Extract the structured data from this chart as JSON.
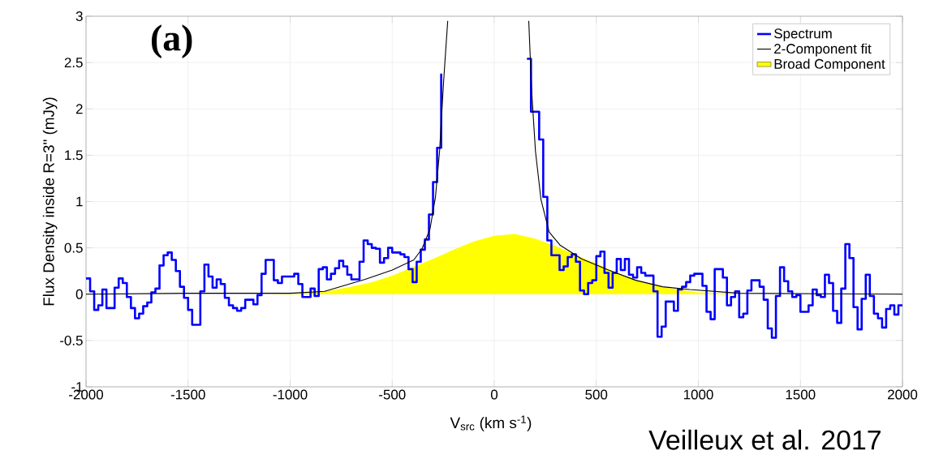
{
  "chart_data": {
    "type": "line",
    "xlabel": "V$_{src}$ (km s$^{-1}$)",
    "ylabel": "Flux Density inside R=3\" (mJy)",
    "annotations": [
      "(a)",
      "Veilleux et al. 2017"
    ],
    "xlim": [
      -2000,
      2000
    ],
    "ylim": [
      -1,
      3
    ],
    "xticks": [
      -2000,
      -1500,
      -1000,
      -500,
      0,
      500,
      1000,
      1500,
      2000
    ],
    "yticks": [
      -1,
      -0.5,
      0,
      0.5,
      1,
      1.5,
      2,
      2.5,
      3
    ],
    "grid": true,
    "legend": "top right",
    "series": [
      {
        "name": "Spectrum",
        "type": "step",
        "color": "#0000ff",
        "x": [
          -2000,
          -1980,
          -1960,
          -1940,
          -1920,
          -1900,
          -1880,
          -1860,
          -1840,
          -1820,
          -1800,
          -1780,
          -1760,
          -1740,
          -1720,
          -1700,
          -1680,
          -1660,
          -1640,
          -1620,
          -1600,
          -1580,
          -1560,
          -1540,
          -1520,
          -1500,
          -1480,
          -1460,
          -1440,
          -1420,
          -1400,
          -1380,
          -1360,
          -1340,
          -1320,
          -1300,
          -1280,
          -1260,
          -1240,
          -1220,
          -1200,
          -1180,
          -1160,
          -1140,
          -1120,
          -1100,
          -1080,
          -1060,
          -1040,
          -1020,
          -1000,
          -980,
          -960,
          -940,
          -920,
          -900,
          -880,
          -860,
          -840,
          -820,
          -800,
          -780,
          -760,
          -740,
          -720,
          -700,
          -680,
          -660,
          -640,
          -620,
          -600,
          -580,
          -560,
          -540,
          -520,
          -500,
          -480,
          -460,
          -440,
          -420,
          -400,
          -380,
          -360,
          -340,
          -320,
          -300,
          -280,
          -260,
          -240,
          -220,
          -200,
          -180,
          -160,
          -140,
          -120,
          -100,
          -80,
          -60,
          -40,
          -20,
          0,
          20,
          40,
          60,
          80,
          100,
          120,
          140,
          160,
          180,
          200,
          220,
          240,
          260,
          280,
          300,
          320,
          340,
          360,
          380,
          400,
          420,
          440,
          460,
          480,
          500,
          520,
          540,
          560,
          580,
          600,
          620,
          640,
          660,
          680,
          700,
          720,
          740,
          760,
          780,
          800,
          820,
          840,
          860,
          880,
          900,
          920,
          940,
          960,
          980,
          1000,
          1020,
          1040,
          1060,
          1080,
          1100,
          1120,
          1140,
          1160,
          1180,
          1200,
          1220,
          1240,
          1260,
          1280,
          1300,
          1320,
          1340,
          1360,
          1380,
          1400,
          1420,
          1440,
          1460,
          1480,
          1500,
          1520,
          1540,
          1560,
          1580,
          1600,
          1620,
          1640,
          1660,
          1680,
          1700,
          1720,
          1740,
          1760,
          1780,
          1800,
          1820,
          1840,
          1860,
          1880,
          1900,
          1920,
          1940,
          1960,
          1980,
          2000
        ],
        "values": [
          0.17,
          0.03,
          -0.17,
          -0.12,
          0.05,
          -0.15,
          -0.15,
          0.07,
          0.17,
          0.12,
          -0.03,
          -0.15,
          -0.26,
          -0.21,
          -0.13,
          -0.09,
          0.02,
          0.06,
          0.31,
          0.42,
          0.45,
          0.37,
          0.25,
          0.08,
          -0.04,
          -0.17,
          -0.33,
          -0.33,
          0.03,
          0.32,
          0.19,
          0.07,
          0.16,
          0.11,
          -0.04,
          -0.12,
          -0.15,
          -0.18,
          -0.15,
          -0.06,
          -0.06,
          -0.11,
          -0.01,
          0.22,
          0.37,
          0.37,
          0.15,
          0.12,
          0.19,
          0.19,
          0.19,
          0.22,
          0.11,
          -0.03,
          -0.03,
          0.06,
          -0.02,
          0.27,
          0.29,
          0.16,
          0.22,
          0.28,
          0.36,
          0.3,
          0.21,
          0.16,
          0.16,
          0.35,
          0.58,
          0.54,
          0.5,
          0.49,
          0.34,
          0.39,
          0.5,
          0.45,
          0.45,
          0.43,
          0.4,
          0.27,
          0.13,
          0.35,
          0.48,
          0.59,
          0.86,
          1.21,
          1.58,
          2.38,
          null,
          null,
          null,
          null,
          null,
          null,
          null,
          null,
          null,
          null,
          null,
          null,
          null,
          null,
          null,
          null,
          null,
          null,
          null,
          null,
          2.54,
          1.97,
          1.97,
          1.67,
          1.05,
          0.58,
          0.42,
          0.42,
          0.26,
          0.3,
          0.4,
          0.43,
          0.35,
          0.04,
          0.0,
          0.12,
          0.15,
          0.41,
          0.46,
          0.23,
          0.07,
          0.23,
          0.38,
          0.26,
          0.38,
          0.21,
          0.18,
          0.29,
          0.23,
          0.2,
          0.2,
          0.03,
          -0.46,
          -0.35,
          -0.08,
          -0.08,
          -0.18,
          0.05,
          0.08,
          0.13,
          0.2,
          0.22,
          0.22,
          0.09,
          -0.19,
          -0.27,
          0.27,
          0.27,
          0.18,
          -0.12,
          -0.03,
          0.03,
          -0.25,
          -0.21,
          0.04,
          0.15,
          0.15,
          0.08,
          -0.06,
          -0.37,
          -0.47,
          -0.02,
          0.29,
          0.14,
          0.03,
          -0.03,
          -0.01,
          -0.19,
          -0.19,
          -0.12,
          0.05,
          -0.01,
          -0.03,
          0.21,
          0.12,
          -0.18,
          -0.31,
          0.06,
          0.54,
          0.39,
          -0.14,
          -0.38,
          -0.05,
          0.21,
          -0.02,
          -0.21,
          -0.26,
          -0.36,
          -0.16,
          -0.12,
          -0.22,
          -0.12,
          -0.12
        ]
      },
      {
        "name": "2-Component fit",
        "type": "line",
        "color": "#000000",
        "x": [
          -2000,
          -1500,
          -1000,
          -831,
          -633,
          -500,
          -394,
          -354,
          -315,
          -288,
          -268,
          -248,
          -228,
          0,
          169,
          183,
          202,
          229,
          269,
          322,
          428,
          560,
          693,
          825,
          958,
          1200,
          2000
        ],
        "values": [
          0,
          0.01,
          0.01,
          0.03,
          0.16,
          0.26,
          0.37,
          0.49,
          0.7,
          1.05,
          1.54,
          2.3,
          2.95,
          null,
          2.95,
          2.2,
          1.54,
          1.02,
          0.67,
          0.53,
          0.38,
          0.26,
          0.15,
          0.08,
          0.05,
          0.01,
          0
        ]
      },
      {
        "name": "Broad Component",
        "type": "area",
        "color": "#ffff00",
        "x": [
          -1200,
          -1100,
          -1000,
          -900,
          -800,
          -700,
          -600,
          -500,
          -400,
          -300,
          -200,
          -100,
          0,
          100,
          200,
          300,
          400,
          500,
          600,
          700,
          800,
          900,
          1000,
          1100,
          1200
        ],
        "values": [
          0,
          0,
          0.01,
          0.02,
          0.04,
          0.08,
          0.13,
          0.2,
          0.29,
          0.38,
          0.48,
          0.57,
          0.63,
          0.65,
          0.6,
          0.52,
          0.42,
          0.33,
          0.23,
          0.15,
          0.09,
          0.05,
          0.02,
          0.01,
          0
        ]
      }
    ]
  }
}
